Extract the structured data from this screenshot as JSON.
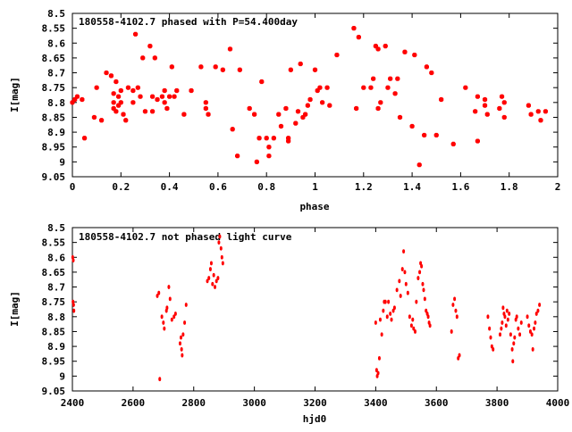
{
  "chart_data": [
    {
      "type": "scatter",
      "title": "180558-4102.7 phased with P=54.400day",
      "xlabel": "phase",
      "ylabel": "I[mag]",
      "xlim": [
        0,
        2
      ],
      "ylim": [
        9.05,
        8.5
      ],
      "y_inverted": true,
      "grid": false,
      "marker_color": "#ff0000",
      "x_ticks": [
        "0",
        "0.2",
        "0.4",
        "0.6",
        "0.8",
        "1",
        "1.2",
        "1.4",
        "1.6",
        "1.8",
        "2"
      ],
      "x_tick_values": [
        0,
        0.2,
        0.4,
        0.6,
        0.8,
        1.0,
        1.2,
        1.4,
        1.6,
        1.8,
        2.0
      ],
      "y_ticks": [
        "8.5",
        "8.55",
        "8.6",
        "8.65",
        "8.7",
        "8.75",
        "8.8",
        "8.85",
        "8.9",
        "8.95",
        "9",
        "9.05"
      ],
      "y_tick_values": [
        8.5,
        8.55,
        8.6,
        8.65,
        8.7,
        8.75,
        8.8,
        8.85,
        8.9,
        8.95,
        9.0,
        9.05
      ],
      "points": [
        [
          0.0,
          8.8
        ],
        [
          0.01,
          8.79
        ],
        [
          0.02,
          8.78
        ],
        [
          0.04,
          8.79
        ],
        [
          0.05,
          8.92
        ],
        [
          0.09,
          8.85
        ],
        [
          0.1,
          8.75
        ],
        [
          0.12,
          8.86
        ],
        [
          0.14,
          8.7
        ],
        [
          0.16,
          8.71
        ],
        [
          0.17,
          8.77
        ],
        [
          0.17,
          8.8
        ],
        [
          0.17,
          8.82
        ],
        [
          0.18,
          8.83
        ],
        [
          0.18,
          8.73
        ],
        [
          0.19,
          8.78
        ],
        [
          0.19,
          8.81
        ],
        [
          0.2,
          8.76
        ],
        [
          0.2,
          8.8
        ],
        [
          0.21,
          8.84
        ],
        [
          0.22,
          8.86
        ],
        [
          0.23,
          8.75
        ],
        [
          0.25,
          8.76
        ],
        [
          0.25,
          8.8
        ],
        [
          0.26,
          8.57
        ],
        [
          0.27,
          8.75
        ],
        [
          0.28,
          8.78
        ],
        [
          0.29,
          8.65
        ],
        [
          0.3,
          8.83
        ],
        [
          0.32,
          8.61
        ],
        [
          0.33,
          8.78
        ],
        [
          0.33,
          8.83
        ],
        [
          0.34,
          8.65
        ],
        [
          0.35,
          8.79
        ],
        [
          0.37,
          8.78
        ],
        [
          0.38,
          8.76
        ],
        [
          0.38,
          8.8
        ],
        [
          0.39,
          8.82
        ],
        [
          0.4,
          8.78
        ],
        [
          0.41,
          8.68
        ],
        [
          0.42,
          8.78
        ],
        [
          0.43,
          8.76
        ],
        [
          0.46,
          8.84
        ],
        [
          0.49,
          8.76
        ],
        [
          0.53,
          8.68
        ],
        [
          0.55,
          8.82
        ],
        [
          0.55,
          8.8
        ],
        [
          0.56,
          8.84
        ],
        [
          0.59,
          8.68
        ],
        [
          0.62,
          8.69
        ],
        [
          0.65,
          8.62
        ],
        [
          0.66,
          8.89
        ],
        [
          0.68,
          8.98
        ],
        [
          0.69,
          8.69
        ],
        [
          0.73,
          8.82
        ],
        [
          0.75,
          8.84
        ],
        [
          0.76,
          9.0
        ],
        [
          0.77,
          8.92
        ],
        [
          0.78,
          8.73
        ],
        [
          0.8,
          8.92
        ],
        [
          0.81,
          8.95
        ],
        [
          0.81,
          8.98
        ],
        [
          0.83,
          8.92
        ],
        [
          0.85,
          8.84
        ],
        [
          0.86,
          8.88
        ],
        [
          0.88,
          8.82
        ],
        [
          0.89,
          8.93
        ],
        [
          0.89,
          8.92
        ],
        [
          0.9,
          8.69
        ],
        [
          0.92,
          8.87
        ],
        [
          0.93,
          8.83
        ],
        [
          0.94,
          8.67
        ],
        [
          0.95,
          8.85
        ],
        [
          0.96,
          8.84
        ],
        [
          0.97,
          8.81
        ],
        [
          0.98,
          8.79
        ],
        [
          1.0,
          8.69
        ],
        [
          1.01,
          8.76
        ],
        [
          1.02,
          8.75
        ],
        [
          1.03,
          8.8
        ],
        [
          1.05,
          8.75
        ],
        [
          1.06,
          8.81
        ],
        [
          1.09,
          8.64
        ],
        [
          1.16,
          8.55
        ],
        [
          1.17,
          8.82
        ],
        [
          1.18,
          8.58
        ],
        [
          1.2,
          8.75
        ],
        [
          1.23,
          8.75
        ],
        [
          1.24,
          8.72
        ],
        [
          1.25,
          8.61
        ],
        [
          1.26,
          8.62
        ],
        [
          1.26,
          8.82
        ],
        [
          1.27,
          8.8
        ],
        [
          1.29,
          8.61
        ],
        [
          1.3,
          8.75
        ],
        [
          1.31,
          8.72
        ],
        [
          1.33,
          8.77
        ],
        [
          1.34,
          8.72
        ],
        [
          1.35,
          8.85
        ],
        [
          1.37,
          8.63
        ],
        [
          1.4,
          8.88
        ],
        [
          1.41,
          8.64
        ],
        [
          1.43,
          9.01
        ],
        [
          1.45,
          8.91
        ],
        [
          1.46,
          8.68
        ],
        [
          1.48,
          8.7
        ],
        [
          1.5,
          8.91
        ],
        [
          1.52,
          8.79
        ],
        [
          1.57,
          8.94
        ],
        [
          1.62,
          8.75
        ],
        [
          1.66,
          8.83
        ],
        [
          1.67,
          8.78
        ],
        [
          1.67,
          8.93
        ],
        [
          1.7,
          8.79
        ],
        [
          1.7,
          8.81
        ],
        [
          1.71,
          8.84
        ],
        [
          1.76,
          8.82
        ],
        [
          1.77,
          8.78
        ],
        [
          1.78,
          8.8
        ],
        [
          1.78,
          8.85
        ],
        [
          1.88,
          8.81
        ],
        [
          1.89,
          8.84
        ],
        [
          1.92,
          8.83
        ],
        [
          1.93,
          8.86
        ],
        [
          1.95,
          8.83
        ]
      ]
    },
    {
      "type": "scatter",
      "title": "180558-4102.7 not phased light curve",
      "xlabel": "hjd0",
      "ylabel": "I[mag]",
      "xlim": [
        2400,
        4000
      ],
      "ylim": [
        9.05,
        8.5
      ],
      "y_inverted": true,
      "grid": false,
      "marker_color": "#ff0000",
      "x_ticks": [
        "2400",
        "2600",
        "2800",
        "3000",
        "3200",
        "3400",
        "3600",
        "3800",
        "4000"
      ],
      "x_tick_values": [
        2400,
        2600,
        2800,
        3000,
        3200,
        3400,
        3600,
        3800,
        4000
      ],
      "y_ticks": [
        "8.5",
        "8.55",
        "8.6",
        "8.65",
        "8.7",
        "8.75",
        "8.8",
        "8.85",
        "8.9",
        "8.95",
        "9",
        "9.05"
      ],
      "y_tick_values": [
        8.5,
        8.55,
        8.6,
        8.65,
        8.7,
        8.75,
        8.8,
        8.85,
        8.9,
        8.95,
        9.0,
        9.05
      ],
      "points": [
        [
          2401,
          8.6
        ],
        [
          2403,
          8.61
        ],
        [
          2402,
          8.75
        ],
        [
          2404,
          8.76
        ],
        [
          2405,
          8.78
        ],
        [
          2680,
          8.73
        ],
        [
          2685,
          8.72
        ],
        [
          2688,
          9.01
        ],
        [
          2695,
          8.8
        ],
        [
          2700,
          8.82
        ],
        [
          2703,
          8.84
        ],
        [
          2710,
          8.78
        ],
        [
          2712,
          8.77
        ],
        [
          2718,
          8.7
        ],
        [
          2722,
          8.74
        ],
        [
          2728,
          8.81
        ],
        [
          2735,
          8.8
        ],
        [
          2740,
          8.79
        ],
        [
          2755,
          8.89
        ],
        [
          2758,
          8.87
        ],
        [
          2760,
          8.91
        ],
        [
          2762,
          8.93
        ],
        [
          2765,
          8.86
        ],
        [
          2770,
          8.82
        ],
        [
          2775,
          8.76
        ],
        [
          2845,
          8.68
        ],
        [
          2850,
          8.67
        ],
        [
          2855,
          8.64
        ],
        [
          2858,
          8.62
        ],
        [
          2862,
          8.69
        ],
        [
          2866,
          8.66
        ],
        [
          2870,
          8.7
        ],
        [
          2875,
          8.68
        ],
        [
          2880,
          8.67
        ],
        [
          2883,
          8.55
        ],
        [
          2886,
          8.53
        ],
        [
          2890,
          8.57
        ],
        [
          2893,
          8.6
        ],
        [
          2896,
          8.62
        ],
        [
          3400,
          8.82
        ],
        [
          3403,
          8.98
        ],
        [
          3405,
          9.0
        ],
        [
          3408,
          8.99
        ],
        [
          3412,
          8.94
        ],
        [
          3415,
          8.81
        ],
        [
          3420,
          8.86
        ],
        [
          3425,
          8.78
        ],
        [
          3428,
          8.75
        ],
        [
          3432,
          8.75
        ],
        [
          3438,
          8.8
        ],
        [
          3442,
          8.75
        ],
        [
          3448,
          8.79
        ],
        [
          3452,
          8.81
        ],
        [
          3458,
          8.78
        ],
        [
          3462,
          8.77
        ],
        [
          3470,
          8.71
        ],
        [
          3478,
          8.68
        ],
        [
          3482,
          8.73
        ],
        [
          3488,
          8.64
        ],
        [
          3492,
          8.58
        ],
        [
          3496,
          8.65
        ],
        [
          3500,
          8.69
        ],
        [
          3506,
          8.72
        ],
        [
          3512,
          8.8
        ],
        [
          3518,
          8.83
        ],
        [
          3522,
          8.81
        ],
        [
          3525,
          8.84
        ],
        [
          3530,
          8.85
        ],
        [
          3534,
          8.75
        ],
        [
          3540,
          8.67
        ],
        [
          3545,
          8.65
        ],
        [
          3548,
          8.62
        ],
        [
          3551,
          8.63
        ],
        [
          3555,
          8.69
        ],
        [
          3558,
          8.71
        ],
        [
          3562,
          8.74
        ],
        [
          3566,
          8.78
        ],
        [
          3570,
          8.79
        ],
        [
          3573,
          8.8
        ],
        [
          3576,
          8.82
        ],
        [
          3579,
          8.83
        ],
        [
          3650,
          8.85
        ],
        [
          3655,
          8.76
        ],
        [
          3660,
          8.74
        ],
        [
          3664,
          8.78
        ],
        [
          3668,
          8.8
        ],
        [
          3672,
          8.94
        ],
        [
          3676,
          8.93
        ],
        [
          3770,
          8.8
        ],
        [
          3775,
          8.84
        ],
        [
          3779,
          8.87
        ],
        [
          3783,
          8.9
        ],
        [
          3787,
          8.91
        ],
        [
          3810,
          8.86
        ],
        [
          3814,
          8.84
        ],
        [
          3817,
          8.82
        ],
        [
          3820,
          8.77
        ],
        [
          3823,
          8.79
        ],
        [
          3826,
          8.8
        ],
        [
          3830,
          8.83
        ],
        [
          3833,
          8.78
        ],
        [
          3836,
          8.81
        ],
        [
          3840,
          8.79
        ],
        [
          3845,
          8.86
        ],
        [
          3850,
          8.91
        ],
        [
          3852,
          8.95
        ],
        [
          3855,
          8.89
        ],
        [
          3858,
          8.87
        ],
        [
          3862,
          8.81
        ],
        [
          3865,
          8.8
        ],
        [
          3870,
          8.84
        ],
        [
          3875,
          8.86
        ],
        [
          3880,
          8.82
        ],
        [
          3900,
          8.8
        ],
        [
          3905,
          8.83
        ],
        [
          3910,
          8.85
        ],
        [
          3915,
          8.86
        ],
        [
          3918,
          8.91
        ],
        [
          3922,
          8.84
        ],
        [
          3926,
          8.82
        ],
        [
          3930,
          8.79
        ],
        [
          3935,
          8.78
        ],
        [
          3940,
          8.76
        ]
      ]
    }
  ]
}
